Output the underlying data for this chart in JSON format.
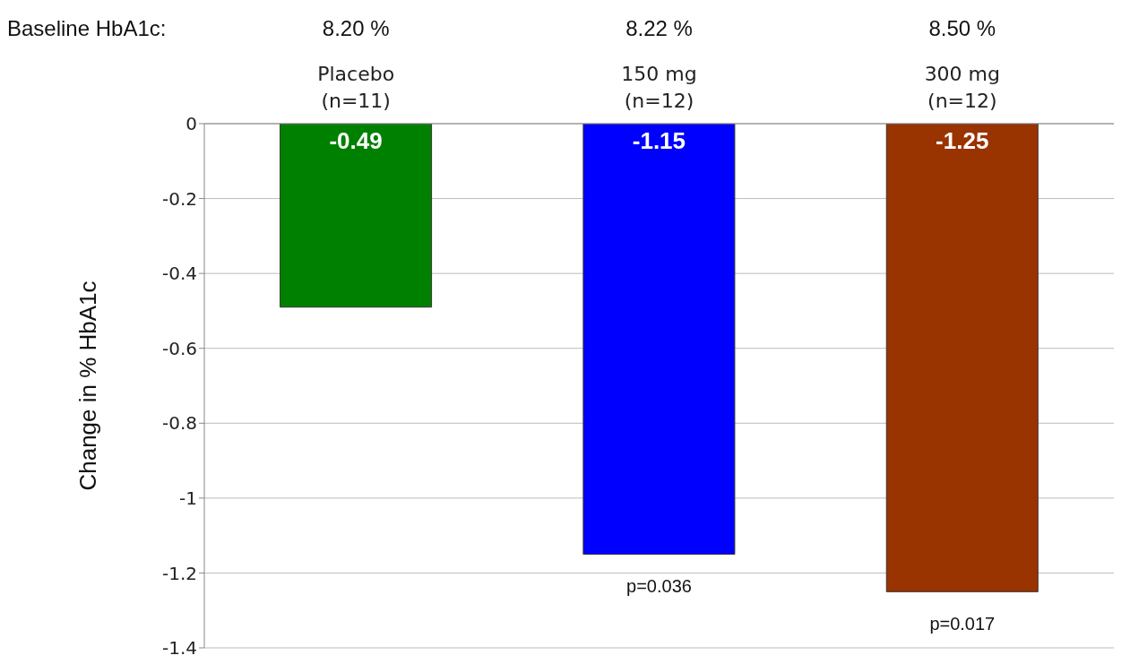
{
  "chart_data": {
    "type": "bar",
    "categories": [
      "Placebo\n(n=11)",
      "150 mg\n(n=12)",
      "300 mg\n(n=12)"
    ],
    "values": [
      -0.49,
      -1.15,
      -1.25
    ],
    "colors": [
      "#008000",
      "#0000ff",
      "#993300"
    ],
    "ylabel": "Change in % HbA1c",
    "ylim": [
      -1.4,
      0
    ],
    "yticks": [
      0,
      -0.2,
      -0.4,
      -0.6,
      -0.8,
      -1,
      -1.2,
      -1.4
    ],
    "grid": "y",
    "data_labels": true,
    "annotations": [
      "Baseline HbA1c:",
      "8.20 %",
      "8.22 %",
      "8.50 %",
      {
        "text": "p=0.036",
        "x": "150 mg\n(n=12)",
        "y": -1.15
      },
      {
        "text": "p=0.017",
        "x": "300 mg\n(n=12)",
        "y": -1.25
      }
    ]
  }
}
